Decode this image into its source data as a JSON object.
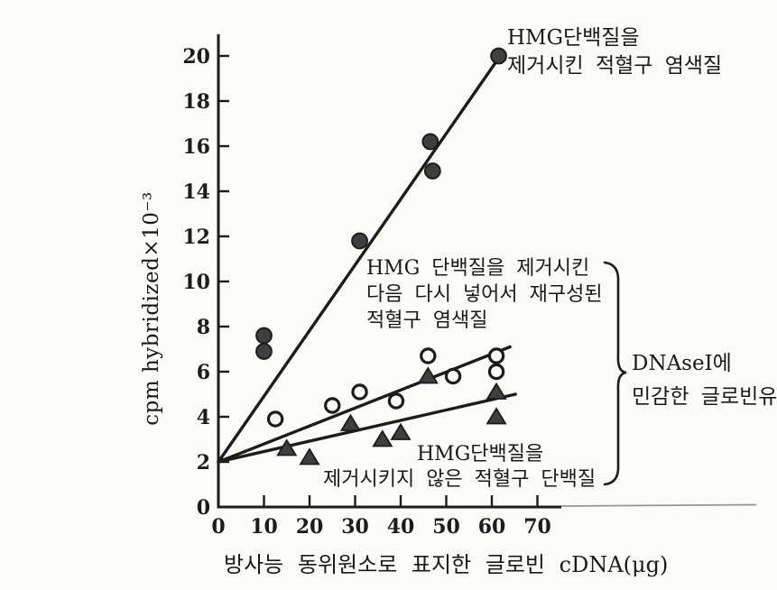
{
  "figure": {
    "bg": "#fcfbf8",
    "ink": "#1c1c1c",
    "marker_fill": "#3f3f3f"
  },
  "y_axis": {
    "label": "cpm hybridized×10⁻³",
    "ticks": [
      0,
      2,
      4,
      6,
      8,
      10,
      12,
      14,
      16,
      18,
      20
    ]
  },
  "x_axis": {
    "label": "방사능 동위원소로 표지한 글로빈 cDNA(μg)",
    "ticks": [
      0,
      10,
      20,
      30,
      40,
      50,
      60,
      70
    ]
  },
  "annotations": {
    "series1": {
      "line1": "HMG단백질을",
      "line2": "제거시킨 적혈구 염색질"
    },
    "series2": {
      "line1": "HMG 단백질을 제거시킨",
      "line2": "다음 다시 넣어서 재구성된",
      "line3": "적혈구 염색질"
    },
    "series3": {
      "line1": "HMG단백질을",
      "line2": "제거시키지 않은 적혈구 단백질"
    },
    "brace_label": {
      "line1": "DNAseI에",
      "line2": "민감한 글로빈유"
    }
  },
  "chart_data": {
    "type": "scatter",
    "title": "",
    "xlabel": "방사능 동위원소로 표지한 글로빈 cDNA(μg)",
    "ylabel": "cpm hybridized×10⁻³",
    "xlim": [
      0,
      80
    ],
    "ylim": [
      0,
      21
    ],
    "grid": false,
    "legend_position": "inline-annotations",
    "series": [
      {
        "name": "HMG단백질을 제거시킨 적혈구 염색질",
        "marker": "filled-circle",
        "points": [
          [
            10,
            7.6
          ],
          [
            10,
            6.9
          ],
          [
            31,
            11.8
          ],
          [
            46.5,
            16.2
          ],
          [
            47,
            14.9
          ],
          [
            61.5,
            20.0
          ]
        ],
        "fit_line": [
          [
            0,
            2
          ],
          [
            60.8,
            19.7
          ]
        ]
      },
      {
        "name": "HMG 단백질을 제거시킨 다음 다시 넣어서 재구성된 적혈구 염색질",
        "marker": "open-circle",
        "points": [
          [
            12.5,
            3.9
          ],
          [
            25,
            4.5
          ],
          [
            31,
            5.1
          ],
          [
            39,
            4.7
          ],
          [
            46,
            6.7
          ],
          [
            51.5,
            5.8
          ],
          [
            61,
            6.7
          ],
          [
            61,
            6.0
          ]
        ],
        "fit_line": [
          [
            0,
            2
          ],
          [
            64,
            7.1
          ]
        ]
      },
      {
        "name": "HMG단백질을 제거시키지 않은 적혈구 단백질",
        "marker": "filled-triangle",
        "points": [
          [
            15,
            2.6
          ],
          [
            20,
            2.2
          ],
          [
            29,
            3.7
          ],
          [
            36,
            3.0
          ],
          [
            40,
            3.3
          ],
          [
            46,
            5.8
          ],
          [
            61,
            5.1
          ],
          [
            61,
            4.0
          ]
        ],
        "fit_line": [
          [
            0,
            2
          ],
          [
            65.2,
            5.0
          ]
        ]
      }
    ],
    "annotation_brace": "DNAseI에 민감한 글로빈유 (brace groups series 2 and 3)"
  }
}
